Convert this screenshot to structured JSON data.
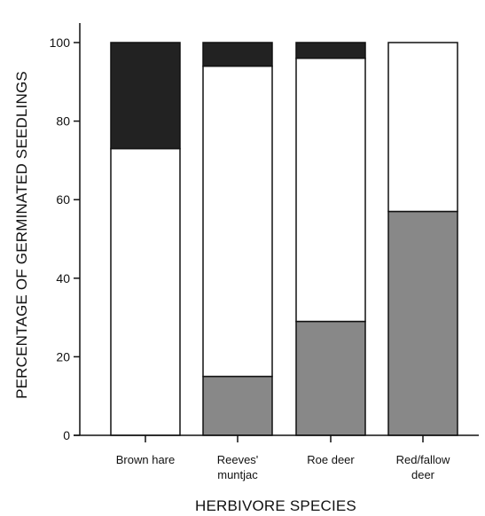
{
  "chart_data": {
    "type": "bar",
    "stacked": true,
    "percent_stacked": true,
    "title": "",
    "xlabel": "HERBIVORE SPECIES",
    "ylabel": "PERCENTAGE OF GERMINATED SEEDLINGS",
    "ylim": [
      0,
      100
    ],
    "yticks": [
      "0",
      "20",
      "40",
      "60",
      "80",
      "100"
    ],
    "categories": [
      [
        "Brown hare"
      ],
      [
        "Reeves'",
        "muntjac"
      ],
      [
        "Roe deer"
      ],
      [
        "Red/fallow",
        "deer"
      ]
    ],
    "series": [
      {
        "color": "#888888",
        "values": [
          0,
          15,
          29,
          57
        ]
      },
      {
        "color": "#ffffff",
        "values": [
          73,
          79,
          67,
          43
        ]
      },
      {
        "color": "#222222",
        "values": [
          27,
          6,
          4,
          0
        ]
      }
    ],
    "grid": false,
    "legend": "none"
  }
}
